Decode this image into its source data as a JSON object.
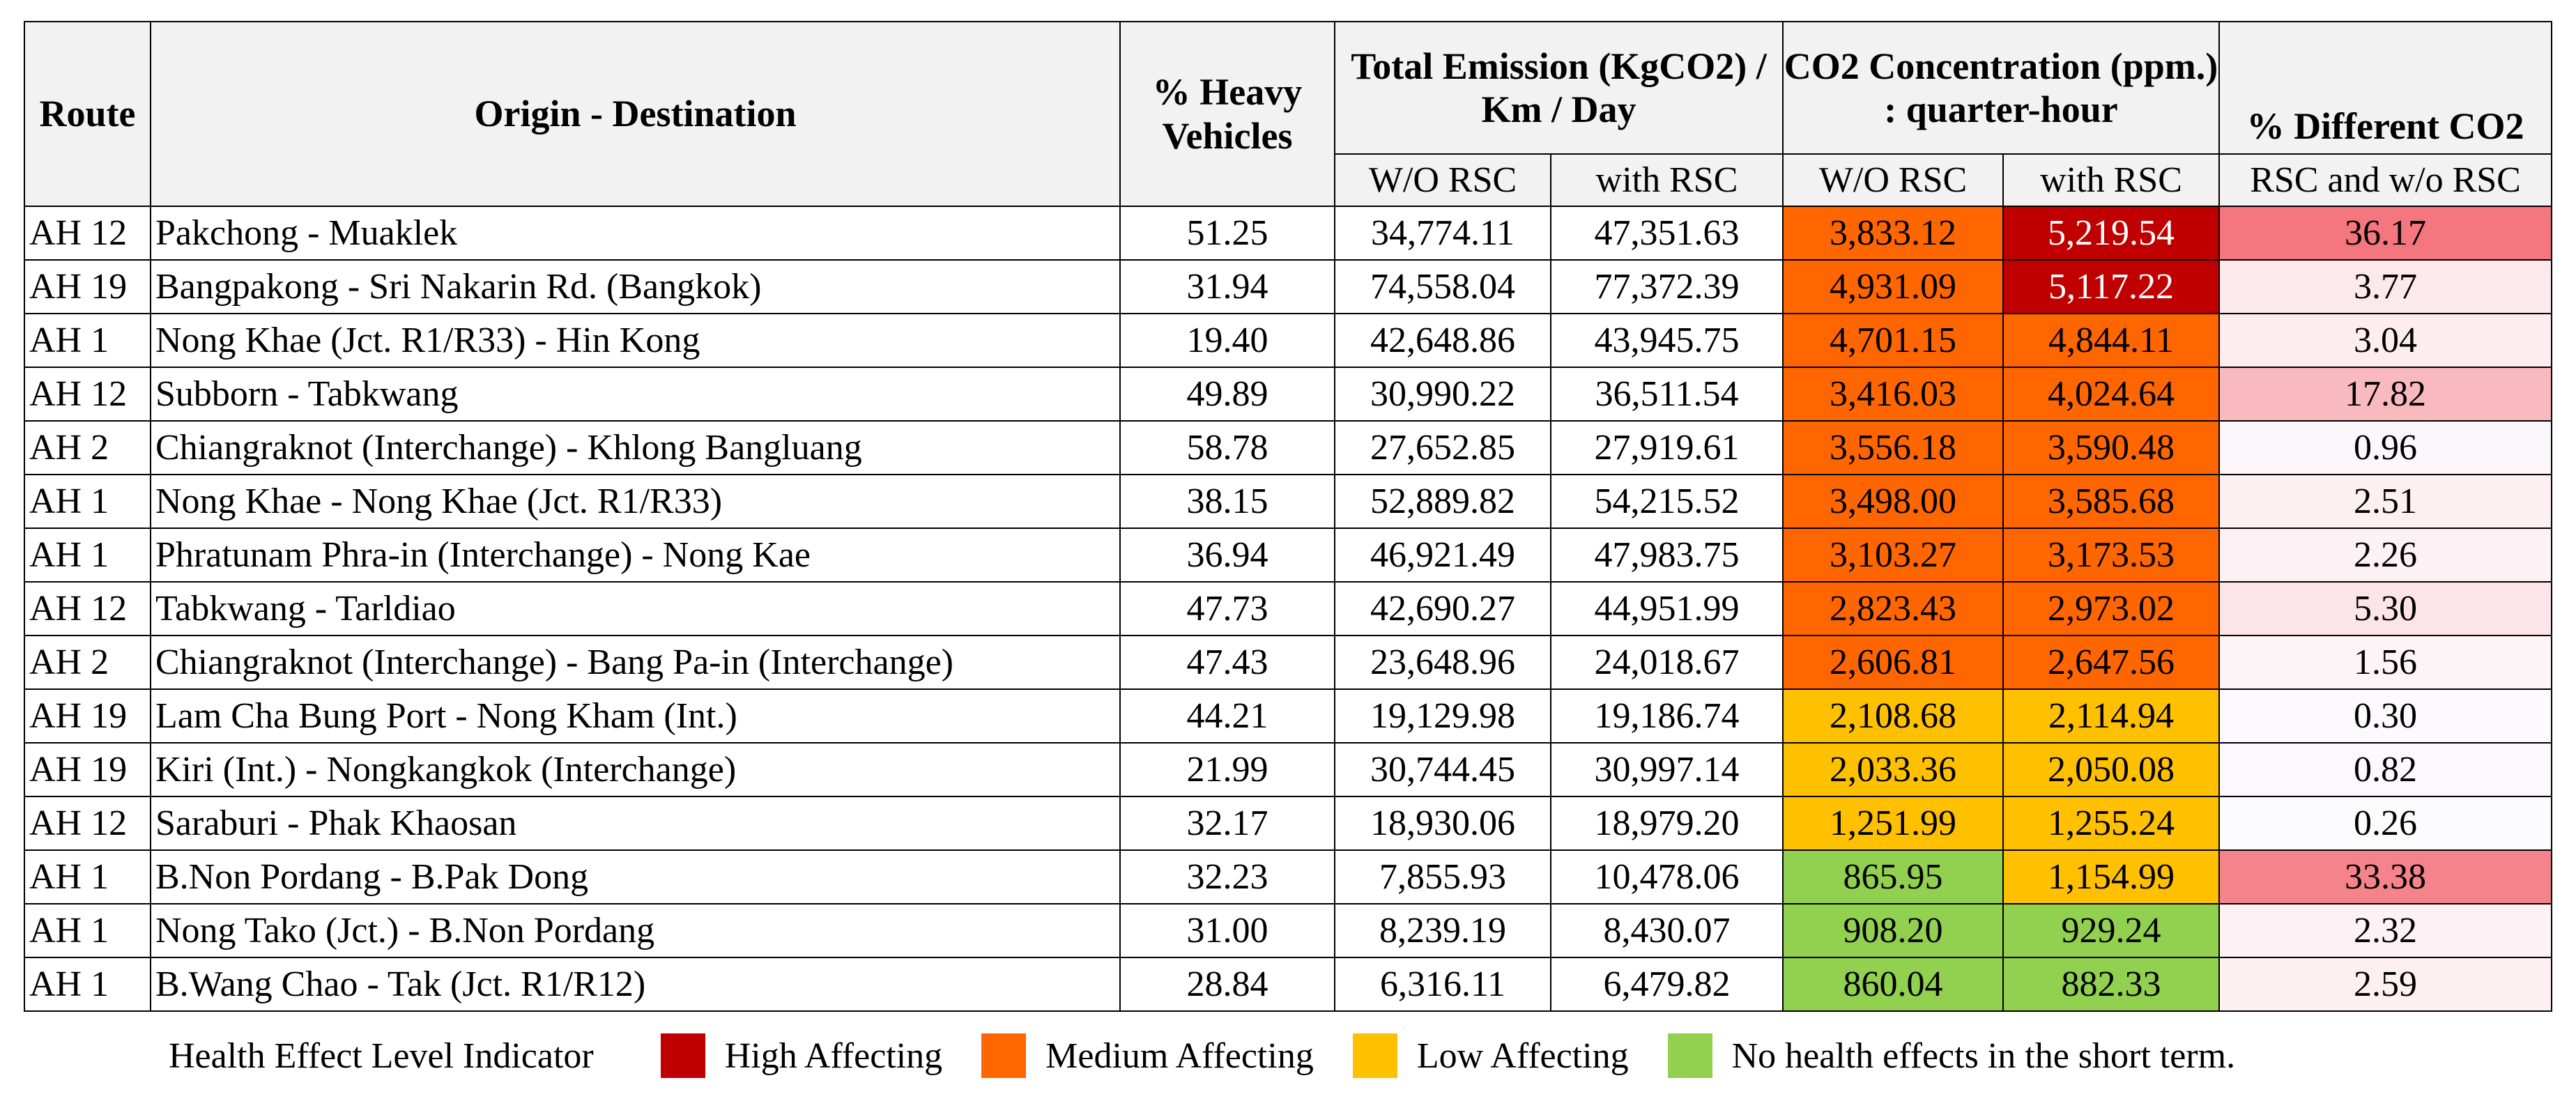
{
  "headers": {
    "route": "Route",
    "od": "Origin - Destination",
    "heavy": "% Heavy Vehicles",
    "total_emission": "Total Emission (KgCO2) / Km / Day",
    "co2": "CO2 Concentration (ppm.) : quarter-hour",
    "diff": "% Different CO2",
    "wo_rsc": "W/O RSC",
    "with_rsc": "with RSC",
    "diff_sub": "RSC and w/o RSC"
  },
  "rows": [
    {
      "route": "AH 12",
      "od": "Pakchong - Muaklek",
      "heavy": "51.25",
      "em_wo": "34,774.11",
      "em_with": "47,351.63",
      "co2_wo": "3,833.12",
      "co2_with": "5,219.54",
      "diff": "36.17",
      "co2_wo_level": "medium",
      "co2_with_level": "high",
      "diff_color": "#f4777f"
    },
    {
      "route": "AH 19",
      "od": "Bangpakong - Sri Nakarin Rd. (Bangkok)",
      "heavy": "31.94",
      "em_wo": "74,558.04",
      "em_with": "77,372.39",
      "co2_wo": "4,931.09",
      "co2_with": "5,117.22",
      "diff": "3.77",
      "co2_wo_level": "medium",
      "co2_with_level": "high",
      "diff_color": "#fce9ec"
    },
    {
      "route": "AH 1",
      "od": "Nong Khae (Jct. R1/R33) - Hin Kong",
      "heavy": "19.40",
      "em_wo": "42,648.86",
      "em_with": "43,945.75",
      "co2_wo": "4,701.15",
      "co2_with": "4,844.11",
      "diff": "3.04",
      "co2_wo_level": "medium",
      "co2_with_level": "medium",
      "diff_color": "#fdedf0"
    },
    {
      "route": "AH 12",
      "od": "Subborn - Tabkwang",
      "heavy": "49.89",
      "em_wo": "30,990.22",
      "em_with": "36,511.54",
      "co2_wo": "3,416.03",
      "co2_with": "4,024.64",
      "diff": "17.82",
      "co2_wo_level": "medium",
      "co2_with_level": "medium",
      "diff_color": "#f8babf"
    },
    {
      "route": "AH 2",
      "od": "Chiangraknot (Interchange) - Khlong Bangluang",
      "heavy": "58.78",
      "em_wo": "27,652.85",
      "em_with": "27,919.61",
      "co2_wo": "3,556.18",
      "co2_with": "3,590.48",
      "diff": "0.96",
      "co2_wo_level": "medium",
      "co2_with_level": "medium",
      "diff_color": "#fcf7fa"
    },
    {
      "route": "AH 1",
      "od": "Nong Khae - Nong Khae (Jct. R1/R33)",
      "heavy": "38.15",
      "em_wo": "52,889.82",
      "em_with": "54,215.52",
      "co2_wo": "3,498.00",
      "co2_with": "3,585.68",
      "diff": "2.51",
      "co2_wo_level": "medium",
      "co2_with_level": "medium",
      "diff_color": "#fcf0f3"
    },
    {
      "route": "AH 1",
      "od": "Phratunam Phra-in (Interchange) - Nong Kae",
      "heavy": "36.94",
      "em_wo": "46,921.49",
      "em_with": "47,983.75",
      "co2_wo": "3,103.27",
      "co2_with": "3,173.53",
      "diff": "2.26",
      "co2_wo_level": "medium",
      "co2_with_level": "medium",
      "diff_color": "#fcf1f4"
    },
    {
      "route": "AH 12",
      "od": "Tabkwang - Tarldiao",
      "heavy": "47.73",
      "em_wo": "42,690.27",
      "em_with": "44,951.99",
      "co2_wo": "2,823.43",
      "co2_with": "2,973.02",
      "diff": "5.30",
      "co2_wo_level": "medium",
      "co2_with_level": "medium",
      "diff_color": "#fce4e8"
    },
    {
      "route": "AH 2",
      "od": "Chiangraknot (Interchange) - Bang Pa-in (Interchange)",
      "heavy": "47.43",
      "em_wo": "23,648.96",
      "em_with": "24,018.67",
      "co2_wo": "2,606.81",
      "co2_with": "2,647.56",
      "diff": "1.56",
      "co2_wo_level": "medium",
      "co2_with_level": "medium",
      "diff_color": "#fcf4f7"
    },
    {
      "route": "AH 19",
      "od": "Lam Cha Bung Port - Nong Kham (Int.)",
      "heavy": "44.21",
      "em_wo": "19,129.98",
      "em_with": "19,186.74",
      "co2_wo": "2,108.68",
      "co2_with": "2,114.94",
      "diff": "0.30",
      "co2_wo_level": "low",
      "co2_with_level": "low",
      "diff_color": "#fcfafd"
    },
    {
      "route": "AH 19",
      "od": "Kiri (Int.) - Nongkangkok (Interchange)",
      "heavy": "21.99",
      "em_wo": "30,744.45",
      "em_with": "30,997.14",
      "co2_wo": "2,033.36",
      "co2_with": "2,050.08",
      "diff": "0.82",
      "co2_wo_level": "low",
      "co2_with_level": "low",
      "diff_color": "#fcf8fb"
    },
    {
      "route": "AH 12",
      "od": "Saraburi - Phak Khaosan",
      "heavy": "32.17",
      "em_wo": "18,930.06",
      "em_with": "18,979.20",
      "co2_wo": "1,251.99",
      "co2_with": "1,255.24",
      "diff": "0.26",
      "co2_wo_level": "low",
      "co2_with_level": "low",
      "diff_color": "#fcfbfe"
    },
    {
      "route": "AH 1",
      "od": "B.Non Pordang - B.Pak Dong",
      "heavy": "32.23",
      "em_wo": "7,855.93",
      "em_with": "10,478.06",
      "co2_wo": "865.95",
      "co2_with": "1,154.99",
      "diff": "33.38",
      "co2_wo_level": "none",
      "co2_with_level": "low",
      "diff_color": "#f5838b"
    },
    {
      "route": "AH 1",
      "od": "Nong Tako (Jct.) - B.Non Pordang",
      "heavy": "31.00",
      "em_wo": "8,239.19",
      "em_with": "8,430.07",
      "co2_wo": "908.20",
      "co2_with": "929.24",
      "diff": "2.32",
      "co2_wo_level": "none",
      "co2_with_level": "none",
      "diff_color": "#fcf1f4"
    },
    {
      "route": "AH 1",
      "od": "B.Wang Chao - Tak (Jct. R1/R12)",
      "heavy": "28.84",
      "em_wo": "6,316.11",
      "em_with": "6,479.82",
      "co2_wo": "860.04",
      "co2_with": "882.33",
      "diff": "2.59",
      "co2_wo_level": "none",
      "co2_with_level": "none",
      "diff_color": "#fcf0f3"
    }
  ],
  "legend": {
    "label": "Health Effect Level Indicator",
    "items": [
      {
        "level": "high",
        "text": "High Affecting",
        "color": "#c00000"
      },
      {
        "level": "medium",
        "text": "Medium Affecting",
        "color": "#ff6600"
      },
      {
        "level": "low",
        "text": "Low Affecting",
        "color": "#ffc000"
      },
      {
        "level": "none",
        "text": "No health effects in the short term.",
        "color": "#92d050"
      }
    ]
  }
}
